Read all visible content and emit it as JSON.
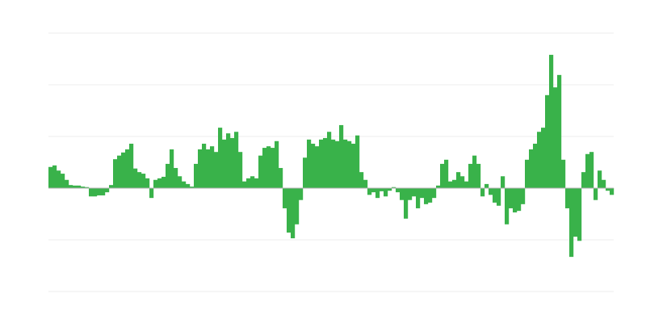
{
  "chart_data": {
    "type": "bar",
    "title": "",
    "xlabel": "",
    "ylabel": "",
    "ylim": [
      -2,
      3
    ],
    "gridlines_y": [
      -2,
      -1,
      0,
      1,
      2,
      3
    ],
    "grid": true,
    "legend": "none",
    "colors": {
      "bar": "#39b24a",
      "grid": "#ededed",
      "zero_line": "#b0b0b0"
    },
    "values": [
      0.41,
      0.44,
      0.34,
      0.28,
      0.16,
      0.06,
      0.05,
      0.05,
      0.03,
      0.02,
      -0.16,
      -0.16,
      -0.14,
      -0.14,
      -0.08,
      0.06,
      0.56,
      0.63,
      0.69,
      0.75,
      0.86,
      0.38,
      0.31,
      0.28,
      0.19,
      -0.19,
      0.16,
      0.19,
      0.22,
      0.47,
      0.75,
      0.39,
      0.23,
      0.13,
      0.08,
      0.03,
      0.47,
      0.75,
      0.86,
      0.75,
      0.81,
      0.7,
      1.17,
      0.94,
      1.06,
      0.97,
      1.09,
      0.7,
      0.13,
      0.19,
      0.23,
      0.19,
      0.63,
      0.78,
      0.81,
      0.78,
      0.91,
      0.39,
      -0.39,
      -0.86,
      -0.97,
      -0.7,
      -0.23,
      0.59,
      0.94,
      0.86,
      0.81,
      0.94,
      0.97,
      1.09,
      0.94,
      0.91,
      1.22,
      0.94,
      0.91,
      0.86,
      1.02,
      0.31,
      0.16,
      -0.13,
      -0.08,
      -0.19,
      -0.06,
      -0.16,
      -0.05,
      0.02,
      -0.08,
      -0.23,
      -0.59,
      -0.23,
      -0.16,
      -0.39,
      -0.19,
      -0.31,
      -0.28,
      -0.19,
      0.05,
      0.47,
      0.55,
      0.13,
      0.16,
      0.31,
      0.23,
      0.13,
      0.47,
      0.63,
      0.47,
      -0.16,
      0.08,
      -0.13,
      -0.28,
      -0.34,
      0.23,
      -0.7,
      -0.39,
      -0.47,
      -0.44,
      -0.31,
      0.55,
      0.75,
      0.86,
      1.09,
      1.17,
      1.8,
      2.58,
      1.95,
      2.19,
      0.55,
      -0.39,
      -1.33,
      -0.94,
      -1.02,
      0.31,
      0.66,
      0.7,
      -0.23,
      0.34,
      0.16,
      -0.05,
      -0.13
    ]
  }
}
